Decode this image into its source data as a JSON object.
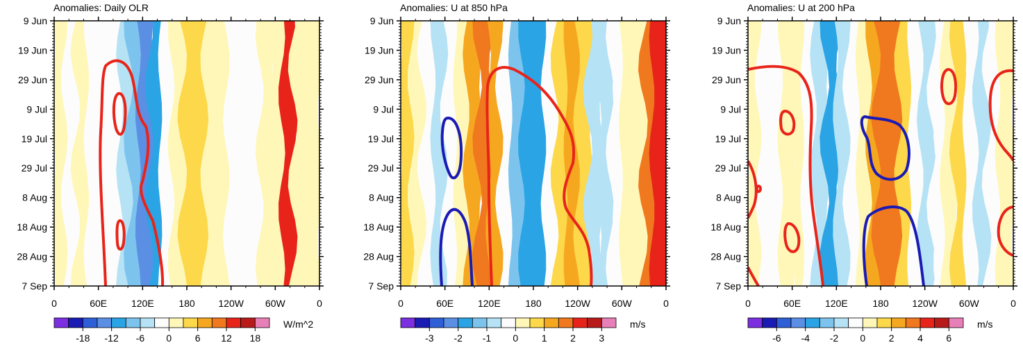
{
  "figure": "Hovmoller diagrams of intraseasonal anomalies (time vs longitude)",
  "chart_data": [
    {
      "type": "heatmap",
      "title": "Anomalies: Daily OLR",
      "y_ticks": [
        "9 Jun",
        "19 Jun",
        "29 Jun",
        "9 Jul",
        "19 Jul",
        "29 Jul",
        "8 Aug",
        "18 Aug",
        "28 Aug",
        "7 Sep"
      ],
      "x_ticks": [
        "0",
        "60E",
        "120E",
        "180",
        "120W",
        "60W",
        "0"
      ],
      "xlim": [
        0,
        360
      ],
      "colorbar": {
        "unit": "W/m^2",
        "labels": [
          "-18",
          "-12",
          "-6",
          "0",
          "6",
          "12",
          "18"
        ],
        "levels": [
          -21,
          -18,
          -15,
          -12,
          -9,
          -6,
          -3,
          0,
          3,
          6,
          9,
          12,
          15,
          18,
          21
        ]
      },
      "bands": [
        {
          "lon": 10,
          "val": 1
        },
        {
          "lon": 25,
          "val": -1
        },
        {
          "lon": 40,
          "val": 0
        },
        {
          "lon": 55,
          "val": -1
        },
        {
          "lon": 70,
          "val": -1
        },
        {
          "lon": 85,
          "val": -2
        },
        {
          "lon": 100,
          "val": -4
        },
        {
          "lon": 112,
          "val": -8
        },
        {
          "lon": 125,
          "val": -15
        },
        {
          "lon": 140,
          "val": -12
        },
        {
          "lon": 155,
          "val": -3
        },
        {
          "lon": 170,
          "val": 1
        },
        {
          "lon": 185,
          "val": 5
        },
        {
          "lon": 200,
          "val": 4
        },
        {
          "lon": 215,
          "val": 1
        },
        {
          "lon": 230,
          "val": 2
        },
        {
          "lon": 245,
          "val": -1
        },
        {
          "lon": 260,
          "val": -3
        },
        {
          "lon": 275,
          "val": -1
        },
        {
          "lon": 290,
          "val": 1
        },
        {
          "lon": 305,
          "val": 2
        },
        {
          "lon": 320,
          "val": 14
        },
        {
          "lon": 335,
          "val": 2
        },
        {
          "lon": 350,
          "val": 0
        }
      ]
    },
    {
      "type": "heatmap",
      "title": "Anomalies: U at 850 hPa",
      "y_ticks": [
        "9 Jun",
        "19 Jun",
        "29 Jun",
        "9 Jul",
        "19 Jul",
        "29 Jul",
        "8 Aug",
        "18 Aug",
        "28 Aug",
        "7 Sep"
      ],
      "x_ticks": [
        "0",
        "60E",
        "120E",
        "180",
        "120W",
        "60W",
        "0"
      ],
      "xlim": [
        0,
        360
      ],
      "colorbar": {
        "unit": "m/s",
        "labels": [
          "-3",
          "-2",
          "-1",
          "0",
          "1",
          "2",
          "3"
        ],
        "levels": [
          -3.5,
          -3,
          -2.5,
          -2,
          -1.5,
          -1,
          -0.5,
          0,
          0.5,
          1,
          1.5,
          2,
          2.5,
          3,
          3.5
        ]
      },
      "bands": [
        {
          "lon": 10,
          "val": 0.6
        },
        {
          "lon": 25,
          "val": 0.2
        },
        {
          "lon": 40,
          "val": -0.2
        },
        {
          "lon": 55,
          "val": -0.7
        },
        {
          "lon": 70,
          "val": -0.4
        },
        {
          "lon": 85,
          "val": 0.3
        },
        {
          "lon": 100,
          "val": 1.0
        },
        {
          "lon": 115,
          "val": 1.6
        },
        {
          "lon": 130,
          "val": 1.2
        },
        {
          "lon": 145,
          "val": -0.3
        },
        {
          "lon": 160,
          "val": -1.3
        },
        {
          "lon": 175,
          "val": -1.8
        },
        {
          "lon": 190,
          "val": -1.6
        },
        {
          "lon": 205,
          "val": -0.4
        },
        {
          "lon": 220,
          "val": 0.8
        },
        {
          "lon": 235,
          "val": 1.3
        },
        {
          "lon": 250,
          "val": 0.6
        },
        {
          "lon": 265,
          "val": -0.6
        },
        {
          "lon": 280,
          "val": -0.9
        },
        {
          "lon": 295,
          "val": -0.2
        },
        {
          "lon": 310,
          "val": 0.3
        },
        {
          "lon": 325,
          "val": 0.4
        },
        {
          "lon": 340,
          "val": 1.8
        },
        {
          "lon": 352,
          "val": 2.2
        }
      ]
    },
    {
      "type": "heatmap",
      "title": "Anomalies: U at 200 hPa",
      "y_ticks": [
        "9 Jun",
        "19 Jun",
        "29 Jun",
        "9 Jul",
        "19 Jul",
        "29 Jul",
        "8 Aug",
        "18 Aug",
        "28 Aug",
        "7 Sep"
      ],
      "x_ticks": [
        "0",
        "60E",
        "120E",
        "180",
        "120W",
        "60W",
        "0"
      ],
      "xlim": [
        0,
        360
      ],
      "colorbar": {
        "unit": "m/s",
        "labels": [
          "-6",
          "-4",
          "-2",
          "0",
          "2",
          "4",
          "6"
        ],
        "levels": [
          -7,
          -6,
          -5,
          -4,
          -3,
          -2,
          -1,
          0,
          1,
          2,
          3,
          4,
          5,
          6,
          7
        ]
      },
      "bands": [
        {
          "lon": 10,
          "val": 0.4
        },
        {
          "lon": 25,
          "val": -0.6
        },
        {
          "lon": 40,
          "val": -0.2
        },
        {
          "lon": 55,
          "val": 0.8
        },
        {
          "lon": 70,
          "val": 0.2
        },
        {
          "lon": 85,
          "val": -0.5
        },
        {
          "lon": 100,
          "val": -1.8
        },
        {
          "lon": 115,
          "val": -3.2
        },
        {
          "lon": 130,
          "val": -2.0
        },
        {
          "lon": 145,
          "val": -0.8
        },
        {
          "lon": 160,
          "val": 0.6
        },
        {
          "lon": 175,
          "val": 2.5
        },
        {
          "lon": 185,
          "val": 3.8
        },
        {
          "lon": 200,
          "val": 3.0
        },
        {
          "lon": 215,
          "val": 1.4
        },
        {
          "lon": 230,
          "val": -0.4
        },
        {
          "lon": 245,
          "val": -1.4
        },
        {
          "lon": 260,
          "val": -0.6
        },
        {
          "lon": 275,
          "val": 0.4
        },
        {
          "lon": 290,
          "val": 1.2
        },
        {
          "lon": 305,
          "val": -0.5
        },
        {
          "lon": 320,
          "val": -1.6
        },
        {
          "lon": 335,
          "val": -0.8
        },
        {
          "lon": 350,
          "val": 0.2
        }
      ]
    }
  ]
}
